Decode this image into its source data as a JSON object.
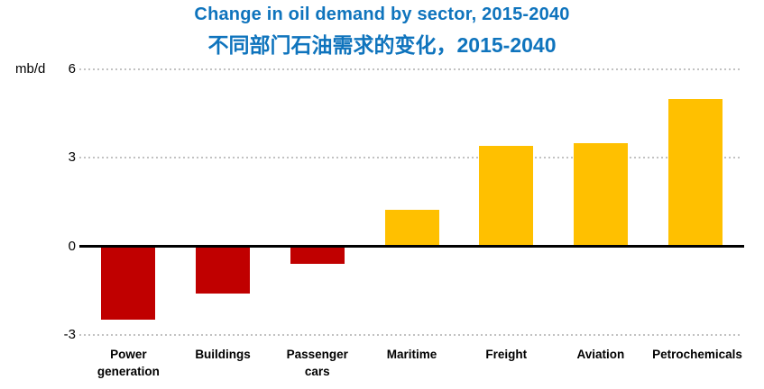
{
  "chart_data": {
    "type": "bar",
    "title": "Change in oil demand by sector, 2015-2040",
    "subtitle": "不同部门石油需求的变化，2015-2040",
    "unit_label": "mb/d",
    "categories": [
      "Power generation",
      "Buildings",
      "Passenger cars",
      "Maritime",
      "Freight",
      "Aviation",
      "Petrochemicals"
    ],
    "values": [
      -2.5,
      -1.6,
      -0.6,
      1.25,
      3.4,
      3.5,
      5.0
    ],
    "xlabel": "",
    "ylabel": "mb/d",
    "ylim": [
      -3,
      6
    ],
    "yticks": [
      6,
      3,
      0,
      -3
    ],
    "grid": "horizontal-dotted",
    "legend": "none",
    "colors": {
      "title": "#0F74BD",
      "positive_bar": "#FFC000",
      "negative_bar": "#C00000",
      "gridline": "#C2C2C2",
      "axis_line": "#000000",
      "text": "#000000"
    }
  }
}
